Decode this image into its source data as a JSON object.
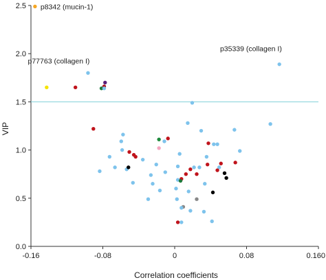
{
  "chart_data": {
    "type": "scatter",
    "title": "",
    "xlabel": "Correlation coefficients",
    "ylabel": "VIP",
    "xlim": [
      -0.16,
      0.16
    ],
    "ylim": [
      0,
      2.5
    ],
    "xticks": [
      -0.16,
      -0.08,
      0,
      0.08,
      0.16
    ],
    "xtick_labels": [
      "-0.16",
      "-0.08",
      "0",
      "0.08",
      "0.160"
    ],
    "yticks": [
      0,
      0.5,
      1,
      1.5,
      2,
      2.5
    ],
    "ytick_labels": [
      "0.0",
      "0.5",
      "1.0",
      "1.5",
      "2.0",
      "2.5"
    ],
    "grid": false,
    "threshold": {
      "y": 1.5,
      "color": "#7fcfd8"
    },
    "annotations": [
      {
        "text": "p8342 (mucin-1)",
        "x": -0.1555,
        "y": 2.49
      },
      {
        "text": "p77763 (collagen I)",
        "x": -0.1275,
        "y": 1.84
      },
      {
        "text": "p35339 (collagen I)",
        "x": 0.0895,
        "y": 1.97
      }
    ],
    "points": [
      {
        "x": -0.1555,
        "y": 2.49,
        "color": "#f5a623"
      },
      {
        "x": -0.1425,
        "y": 1.65,
        "color": "#f5e400"
      },
      {
        "x": -0.1105,
        "y": 1.65,
        "color": "#c0141c"
      },
      {
        "x": -0.0965,
        "y": 1.8,
        "color": "#7ec3ec"
      },
      {
        "x": -0.0775,
        "y": 1.7,
        "color": "#5a1e7a"
      },
      {
        "x": -0.0785,
        "y": 1.66,
        "color": "#a80f1b"
      },
      {
        "x": -0.0815,
        "y": 1.64,
        "color": "#1e7a3c"
      },
      {
        "x": -0.0785,
        "y": 1.64,
        "color": "#7ec3ec"
      },
      {
        "x": 0.1165,
        "y": 1.89,
        "color": "#7ec3ec"
      },
      {
        "x": 0.0195,
        "y": 1.49,
        "color": "#7ec3ec"
      },
      {
        "x": -0.0905,
        "y": 1.22,
        "color": "#c0141c"
      },
      {
        "x": 0.1065,
        "y": 1.27,
        "color": "#7ec3ec"
      },
      {
        "x": 0.0665,
        "y": 1.21,
        "color": "#7ec3ec"
      },
      {
        "x": 0.0145,
        "y": 1.28,
        "color": "#7ec3ec"
      },
      {
        "x": 0.0295,
        "y": 1.2,
        "color": "#7ec3ec"
      },
      {
        "x": -0.0575,
        "y": 1.16,
        "color": "#7ec3ec"
      },
      {
        "x": -0.0175,
        "y": 1.11,
        "color": "#1e8a3c"
      },
      {
        "x": -0.0075,
        "y": 1.12,
        "color": "#c0141c"
      },
      {
        "x": -0.0595,
        "y": 1.09,
        "color": "#7ec3ec"
      },
      {
        "x": -0.0115,
        "y": 1.09,
        "color": "#7ec3ec"
      },
      {
        "x": 0.0375,
        "y": 1.07,
        "color": "#c0141c"
      },
      {
        "x": 0.0435,
        "y": 1.06,
        "color": "#7ec3ec"
      },
      {
        "x": 0.0475,
        "y": 1.06,
        "color": "#7ec3ec"
      },
      {
        "x": -0.0175,
        "y": 1.02,
        "color": "#f4a6c0"
      },
      {
        "x": -0.0585,
        "y": 1.0,
        "color": "#7ec3ec"
      },
      {
        "x": -0.0505,
        "y": 0.98,
        "color": "#c0141c"
      },
      {
        "x": 0.0725,
        "y": 0.99,
        "color": "#7ec3ec"
      },
      {
        "x": 0.0055,
        "y": 0.96,
        "color": "#7ec3ec"
      },
      {
        "x": -0.0455,
        "y": 0.95,
        "color": "#c0141c"
      },
      {
        "x": -0.0435,
        "y": 0.93,
        "color": "#c0141c"
      },
      {
        "x": -0.0725,
        "y": 0.93,
        "color": "#7ec3ec"
      },
      {
        "x": -0.0355,
        "y": 0.9,
        "color": "#7ec3ec"
      },
      {
        "x": 0.0355,
        "y": 0.93,
        "color": "#7ec3ec"
      },
      {
        "x": 0.0675,
        "y": 0.87,
        "color": "#c0141c"
      },
      {
        "x": 0.0515,
        "y": 0.86,
        "color": "#c0141c"
      },
      {
        "x": 0.0365,
        "y": 0.85,
        "color": "#c0141c"
      },
      {
        "x": -0.0205,
        "y": 0.85,
        "color": "#7ec3ec"
      },
      {
        "x": -0.0665,
        "y": 0.82,
        "color": "#7ec3ec"
      },
      {
        "x": 0.0215,
        "y": 0.82,
        "color": "#7ec3ec"
      },
      {
        "x": 0.0275,
        "y": 0.82,
        "color": "#7ec3ec"
      },
      {
        "x": 0.0035,
        "y": 0.83,
        "color": "#7ec3ec"
      },
      {
        "x": 0.0495,
        "y": 0.82,
        "color": "#7ec3ec"
      },
      {
        "x": -0.0535,
        "y": 0.8,
        "color": "#7ec3ec"
      },
      {
        "x": 0.0175,
        "y": 0.8,
        "color": "#c0141c"
      },
      {
        "x": 0.0475,
        "y": 0.79,
        "color": "#c0141c"
      },
      {
        "x": -0.0835,
        "y": 0.78,
        "color": "#7ec3ec"
      },
      {
        "x": -0.0105,
        "y": 0.77,
        "color": "#7ec3ec"
      },
      {
        "x": 0.0555,
        "y": 0.76,
        "color": "#000000"
      },
      {
        "x": 0.0125,
        "y": 0.75,
        "color": "#c0141c"
      },
      {
        "x": 0.0245,
        "y": 0.75,
        "color": "#c0141c"
      },
      {
        "x": -0.0265,
        "y": 0.74,
        "color": "#7ec3ec"
      },
      {
        "x": 0.0575,
        "y": 0.71,
        "color": "#000000"
      },
      {
        "x": 0.0075,
        "y": 0.7,
        "color": "#c0141c"
      },
      {
        "x": 0.0035,
        "y": 0.69,
        "color": "#7ec3ec"
      },
      {
        "x": 0.0065,
        "y": 0.68,
        "color": "#1e7a3c"
      },
      {
        "x": -0.0465,
        "y": 0.66,
        "color": "#7ec3ec"
      },
      {
        "x": -0.0245,
        "y": 0.65,
        "color": "#7ec3ec"
      },
      {
        "x": 0.0335,
        "y": 0.65,
        "color": "#7ec3ec"
      },
      {
        "x": 0.0015,
        "y": 0.6,
        "color": "#7ec3ec"
      },
      {
        "x": -0.0165,
        "y": 0.58,
        "color": "#7ec3ec"
      },
      {
        "x": 0.0155,
        "y": 0.57,
        "color": "#7ec3ec"
      },
      {
        "x": 0.0425,
        "y": 0.56,
        "color": "#000000"
      },
      {
        "x": -0.0295,
        "y": 0.49,
        "color": "#7ec3ec"
      },
      {
        "x": 0.0025,
        "y": 0.49,
        "color": "#7ec3ec"
      },
      {
        "x": 0.0245,
        "y": 0.49,
        "color": "#888888"
      },
      {
        "x": 0.0095,
        "y": 0.41,
        "color": "#888888"
      },
      {
        "x": 0.0075,
        "y": 0.4,
        "color": "#7ec3ec"
      },
      {
        "x": 0.0175,
        "y": 0.37,
        "color": "#7ec3ec"
      },
      {
        "x": 0.0325,
        "y": 0.36,
        "color": "#7ec3ec"
      },
      {
        "x": 0.0035,
        "y": 0.25,
        "color": "#c0141c"
      },
      {
        "x": 0.0075,
        "y": 0.25,
        "color": "#7ec3ec"
      },
      {
        "x": -0.0515,
        "y": 0.82,
        "color": "#000000"
      },
      {
        "x": 0.0415,
        "y": 0.26,
        "color": "#7ec3ec"
      }
    ]
  }
}
